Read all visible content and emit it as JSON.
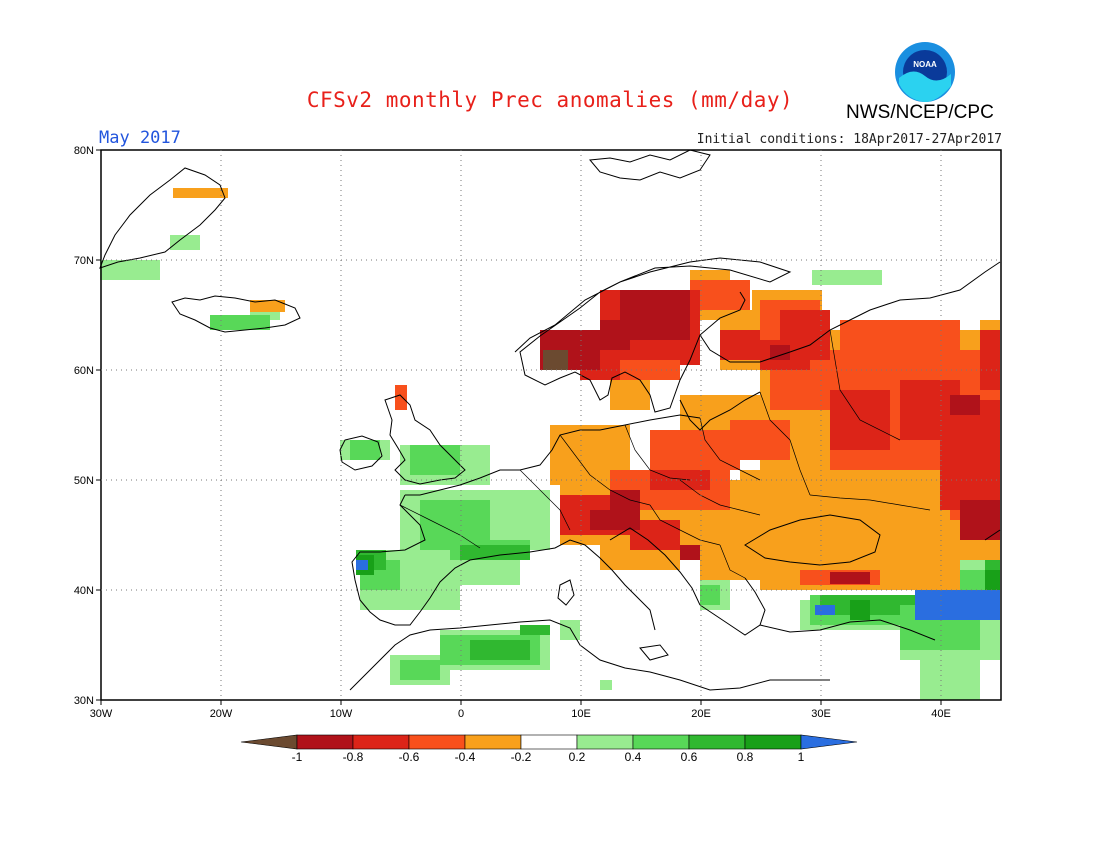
{
  "title": "CFSv2 monthly Prec anomalies (mm/day)",
  "agency": "NWS/NCEP/CPC",
  "logo_text": "NOAA",
  "month": "May 2017",
  "initial_conditions": "Initial conditions: 18Apr2017-27Apr2017",
  "lat_labels": [
    "80N",
    "70N",
    "60N",
    "50N",
    "40N",
    "30N"
  ],
  "lon_labels": [
    "30W",
    "20W",
    "10W",
    "0",
    "10E",
    "20E",
    "30E",
    "40E"
  ],
  "colorbar": {
    "labels": [
      "-1",
      "-0.8",
      "-0.6",
      "-0.4",
      "-0.2",
      "0.2",
      "0.4",
      "0.6",
      "0.8",
      "1"
    ],
    "colors": [
      "#6b4a30",
      "#b0121a",
      "#dc2418",
      "#f8501c",
      "#f8a01c",
      "#ffffff",
      "#98ec90",
      "#58d858",
      "#30b830",
      "#18a018",
      "#2a6ee0"
    ]
  },
  "colors": {
    "wet_strong": "#2a6ee0",
    "wet_0.8": "#18a018",
    "wet_0.6": "#30b830",
    "wet_0.4": "#58d858",
    "wet_0.2": "#98ec90",
    "dry_0.2": "#f8a01c",
    "dry_0.4": "#f8501c",
    "dry_0.6": "#dc2418",
    "dry_0.8": "#b0121a",
    "dry_strong": "#6b4a30"
  }
}
